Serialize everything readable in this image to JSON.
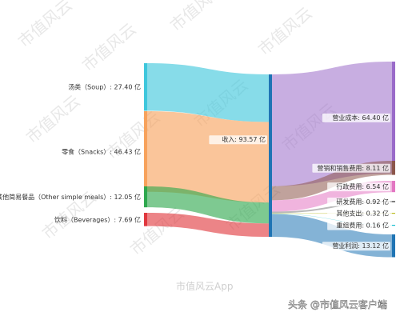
{
  "chart_data": {
    "type": "sankey",
    "unit": "亿",
    "sources": [
      {
        "label": "汤类（Soup）: 27.40 亿",
        "value": 27.4,
        "color": "#3ec7dc"
      },
      {
        "label": "零食（Snacks）: 46.43 亿",
        "value": 46.43,
        "color": "#f7a25c"
      },
      {
        "label": "其他简易餐品（Other simple meals）: 12.05 亿",
        "value": 12.05,
        "color": "#2ea84e"
      },
      {
        "label": "饮料（Beverages）: 7.69 亿",
        "value": 7.69,
        "color": "#e0383e"
      }
    ],
    "center": {
      "label": "收入: 93.57 亿",
      "value": 93.57,
      "color": "#1f74b4"
    },
    "targets": [
      {
        "label": "营业成本: 64.40 亿",
        "value": 64.4,
        "color": "#9a6bc9"
      },
      {
        "label": "营销和销售费用: 8.11 亿",
        "value": 8.11,
        "color": "#8c564b"
      },
      {
        "label": "行政费用: 6.54 亿",
        "value": 6.54,
        "color": "#e377c2"
      },
      {
        "label": "研发费用: 0.92 亿",
        "value": 0.92,
        "color": "#7f7f7f"
      },
      {
        "label": "其他支出: 0.32 亿",
        "value": 0.32,
        "color": "#bcbd22"
      },
      {
        "label": "重组费用: 0.16 亿",
        "value": 0.16,
        "color": "#17becf"
      },
      {
        "label": "营业利润: 13.12 亿",
        "value": 13.12,
        "color": "#1f74b4"
      }
    ]
  },
  "watermark": {
    "text": "市值风云"
  },
  "footer": {
    "left_text": "市值风云App",
    "right_text": "头条 @市值风云客户端"
  }
}
